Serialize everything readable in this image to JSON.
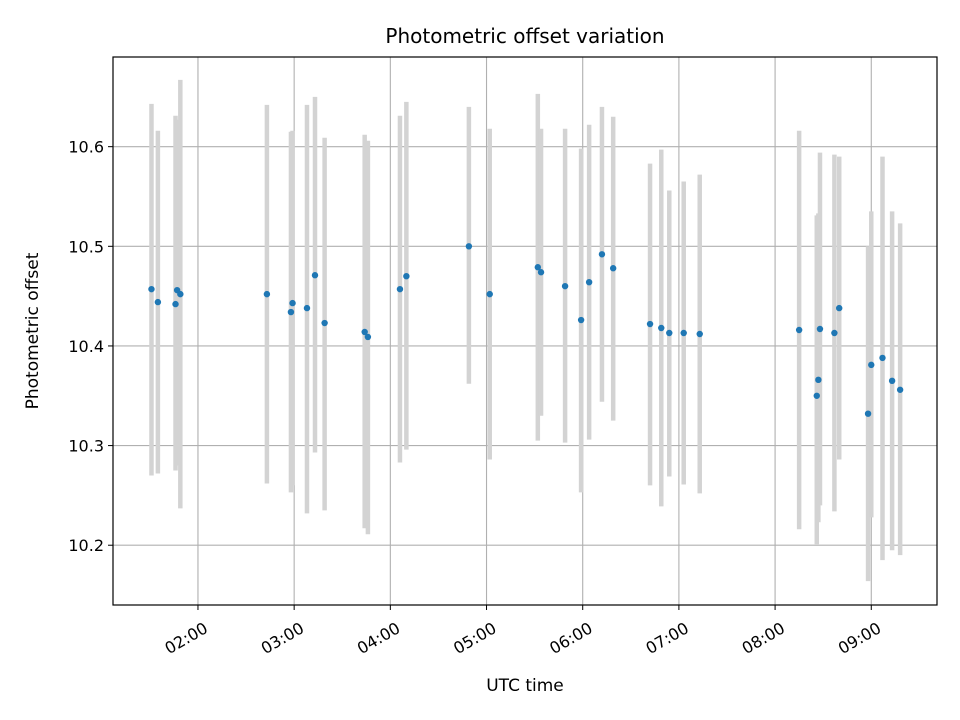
{
  "chart_data": {
    "type": "scatter",
    "title": "Photometric offset variation",
    "xlabel": "UTC time",
    "ylabel": "Photometric offset",
    "xlim": [
      "01:07",
      "09:41"
    ],
    "ylim": [
      10.14,
      10.69
    ],
    "x_ticks": [
      "02:00",
      "03:00",
      "04:00",
      "05:00",
      "06:00",
      "07:00",
      "08:00",
      "09:00"
    ],
    "y_ticks": [
      10.2,
      10.3,
      10.4,
      10.5,
      10.6
    ],
    "grid": true,
    "point_color": "#1f77b4",
    "errorbar_color": "#d3d3d3",
    "points": [
      {
        "x": "01:31",
        "y": 10.457,
        "ylo": 10.27,
        "yhi": 10.643
      },
      {
        "x": "01:35",
        "y": 10.444,
        "ylo": 10.272,
        "yhi": 10.616
      },
      {
        "x": "01:46",
        "y": 10.442,
        "ylo": 10.275,
        "yhi": 10.631
      },
      {
        "x": "01:47",
        "y": 10.456,
        "ylo": 10.28,
        "yhi": 10.627
      },
      {
        "x": "01:49",
        "y": 10.452,
        "ylo": 10.237,
        "yhi": 10.667
      },
      {
        "x": "02:43",
        "y": 10.452,
        "ylo": 10.262,
        "yhi": 10.642
      },
      {
        "x": "02:58",
        "y": 10.434,
        "ylo": 10.253,
        "yhi": 10.615
      },
      {
        "x": "02:59",
        "y": 10.443,
        "ylo": 10.26,
        "yhi": 10.616
      },
      {
        "x": "03:08",
        "y": 10.438,
        "ylo": 10.232,
        "yhi": 10.642
      },
      {
        "x": "03:13",
        "y": 10.471,
        "ylo": 10.293,
        "yhi": 10.65
      },
      {
        "x": "03:19",
        "y": 10.423,
        "ylo": 10.235,
        "yhi": 10.609
      },
      {
        "x": "03:44",
        "y": 10.414,
        "ylo": 10.217,
        "yhi": 10.612
      },
      {
        "x": "03:46",
        "y": 10.409,
        "ylo": 10.211,
        "yhi": 10.606
      },
      {
        "x": "04:06",
        "y": 10.457,
        "ylo": 10.283,
        "yhi": 10.631
      },
      {
        "x": "04:10",
        "y": 10.47,
        "ylo": 10.296,
        "yhi": 10.645
      },
      {
        "x": "04:49",
        "y": 10.5,
        "ylo": 10.362,
        "yhi": 10.64
      },
      {
        "x": "05:02",
        "y": 10.452,
        "ylo": 10.286,
        "yhi": 10.618
      },
      {
        "x": "05:32",
        "y": 10.479,
        "ylo": 10.305,
        "yhi": 10.653
      },
      {
        "x": "05:34",
        "y": 10.474,
        "ylo": 10.33,
        "yhi": 10.618
      },
      {
        "x": "05:49",
        "y": 10.46,
        "ylo": 10.303,
        "yhi": 10.618
      },
      {
        "x": "05:59",
        "y": 10.426,
        "ylo": 10.253,
        "yhi": 10.598
      },
      {
        "x": "06:04",
        "y": 10.464,
        "ylo": 10.306,
        "yhi": 10.622
      },
      {
        "x": "06:12",
        "y": 10.492,
        "ylo": 10.344,
        "yhi": 10.64
      },
      {
        "x": "06:19",
        "y": 10.478,
        "ylo": 10.325,
        "yhi": 10.63
      },
      {
        "x": "06:42",
        "y": 10.422,
        "ylo": 10.26,
        "yhi": 10.583
      },
      {
        "x": "06:49",
        "y": 10.418,
        "ylo": 10.239,
        "yhi": 10.597
      },
      {
        "x": "06:54",
        "y": 10.413,
        "ylo": 10.269,
        "yhi": 10.556
      },
      {
        "x": "07:03",
        "y": 10.413,
        "ylo": 10.261,
        "yhi": 10.565
      },
      {
        "x": "07:13",
        "y": 10.412,
        "ylo": 10.252,
        "yhi": 10.572
      },
      {
        "x": "08:15",
        "y": 10.416,
        "ylo": 10.216,
        "yhi": 10.616
      },
      {
        "x": "08:26",
        "y": 10.35,
        "ylo": 10.201,
        "yhi": 10.531
      },
      {
        "x": "08:27",
        "y": 10.366,
        "ylo": 10.223,
        "yhi": 10.533
      },
      {
        "x": "08:28",
        "y": 10.417,
        "ylo": 10.24,
        "yhi": 10.594
      },
      {
        "x": "08:37",
        "y": 10.413,
        "ylo": 10.234,
        "yhi": 10.592
      },
      {
        "x": "08:40",
        "y": 10.438,
        "ylo": 10.286,
        "yhi": 10.59
      },
      {
        "x": "08:58",
        "y": 10.332,
        "ylo": 10.164,
        "yhi": 10.5
      },
      {
        "x": "09:00",
        "y": 10.381,
        "ylo": 10.228,
        "yhi": 10.535
      },
      {
        "x": "09:07",
        "y": 10.388,
        "ylo": 10.185,
        "yhi": 10.59
      },
      {
        "x": "09:13",
        "y": 10.365,
        "ylo": 10.195,
        "yhi": 10.535
      },
      {
        "x": "09:18",
        "y": 10.356,
        "ylo": 10.19,
        "yhi": 10.523
      }
    ]
  }
}
